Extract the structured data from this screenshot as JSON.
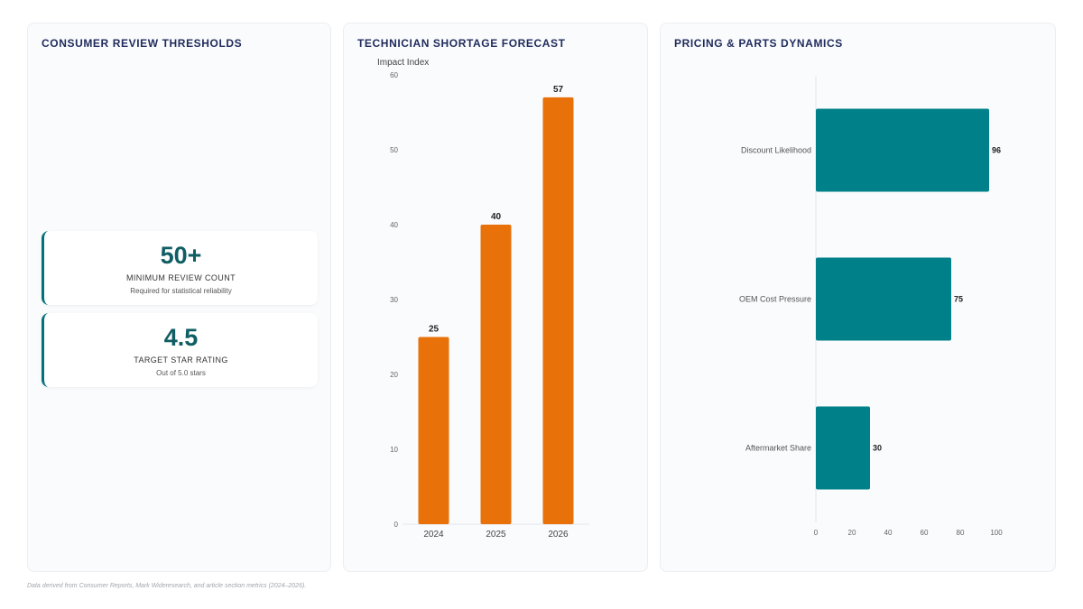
{
  "panels": {
    "reviews": {
      "title": "CONSUMER REVIEW THRESHOLDS",
      "kpis": [
        {
          "value": "50+",
          "label": "MINIMUM REVIEW COUNT",
          "sub": "Required for statistical reliability"
        },
        {
          "value": "4.5",
          "label": "TARGET STAR RATING",
          "sub": "Out of 5.0 stars"
        }
      ]
    },
    "forecast": {
      "title": "TECHNICIAN SHORTAGE FORECAST"
    },
    "pricing": {
      "title": "PRICING & PARTS DYNAMICS"
    }
  },
  "chart_data": [
    {
      "type": "bar",
      "title": "TECHNICIAN SHORTAGE FORECAST",
      "ylabel": "Impact Index",
      "categories": [
        "2024",
        "2025",
        "2026"
      ],
      "values": [
        25,
        40,
        57
      ],
      "ylim": [
        0,
        60
      ],
      "yticks": [
        0,
        10,
        20,
        30,
        40,
        50,
        60
      ],
      "color": "#e8710a",
      "grid": false,
      "legend": "none"
    },
    {
      "type": "bar",
      "orientation": "horizontal",
      "title": "PRICING & PARTS DYNAMICS",
      "categories": [
        "Discount Likelihood",
        "OEM Cost Pressure",
        "Aftermarket Share"
      ],
      "values": [
        96,
        75,
        30
      ],
      "xlim": [
        0,
        100
      ],
      "xticks": [
        0,
        20,
        40,
        60,
        80,
        100
      ],
      "color": "#00818a",
      "grid": false,
      "legend": "none"
    }
  ],
  "footnote": "Data derived from Consumer Reports, Mark Wideresearch, and article section metrics (2024–2026)."
}
